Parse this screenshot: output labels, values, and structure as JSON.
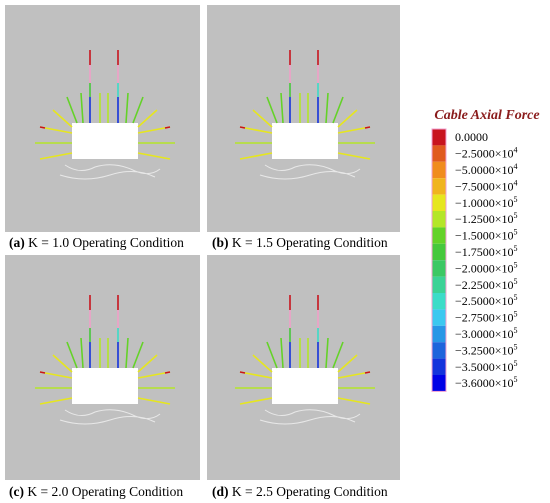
{
  "panels": [
    {
      "label": "(a)",
      "caption": "K = 1.0 Operating Condition"
    },
    {
      "label": "(b)",
      "caption": "K = 1.5 Operating Condition"
    },
    {
      "label": "(c)",
      "caption": "K = 2.0 Operating Condition"
    },
    {
      "label": "(d)",
      "caption": "K = 2.5 Operating Condition"
    }
  ],
  "legend": {
    "title": "Cable Axial Force",
    "items": [
      {
        "text": "0.0000",
        "color": "#c8141e"
      },
      {
        "text": "−2.5000×10",
        "exp": "4",
        "color": "#e05a1e"
      },
      {
        "text": "−5.0000×10",
        "exp": "4",
        "color": "#f08c1e"
      },
      {
        "text": "−7.5000×10",
        "exp": "4",
        "color": "#f0b41e"
      },
      {
        "text": "−1.0000×10",
        "exp": "5",
        "color": "#e6e61e"
      },
      {
        "text": "−1.2500×10",
        "exp": "5",
        "color": "#b4e628"
      },
      {
        "text": "−1.5000×10",
        "exp": "5",
        "color": "#64d228"
      },
      {
        "text": "−1.7500×10",
        "exp": "5",
        "color": "#46c83c"
      },
      {
        "text": "−2.0000×10",
        "exp": "5",
        "color": "#3cc864"
      },
      {
        "text": "−2.2500×10",
        "exp": "5",
        "color": "#3cd296"
      },
      {
        "text": "−2.5000×10",
        "exp": "5",
        "color": "#3cdcc8"
      },
      {
        "text": "−2.7500×10",
        "exp": "5",
        "color": "#3cc8f0"
      },
      {
        "text": "−3.0000×10",
        "exp": "5",
        "color": "#2896e6"
      },
      {
        "text": "−3.2500×10",
        "exp": "5",
        "color": "#1e64dc"
      },
      {
        "text": "−3.5000×10",
        "exp": "5",
        "color": "#1432dc"
      },
      {
        "text": "−3.6000×10",
        "exp": "5",
        "color": "#0000e6"
      }
    ]
  }
}
